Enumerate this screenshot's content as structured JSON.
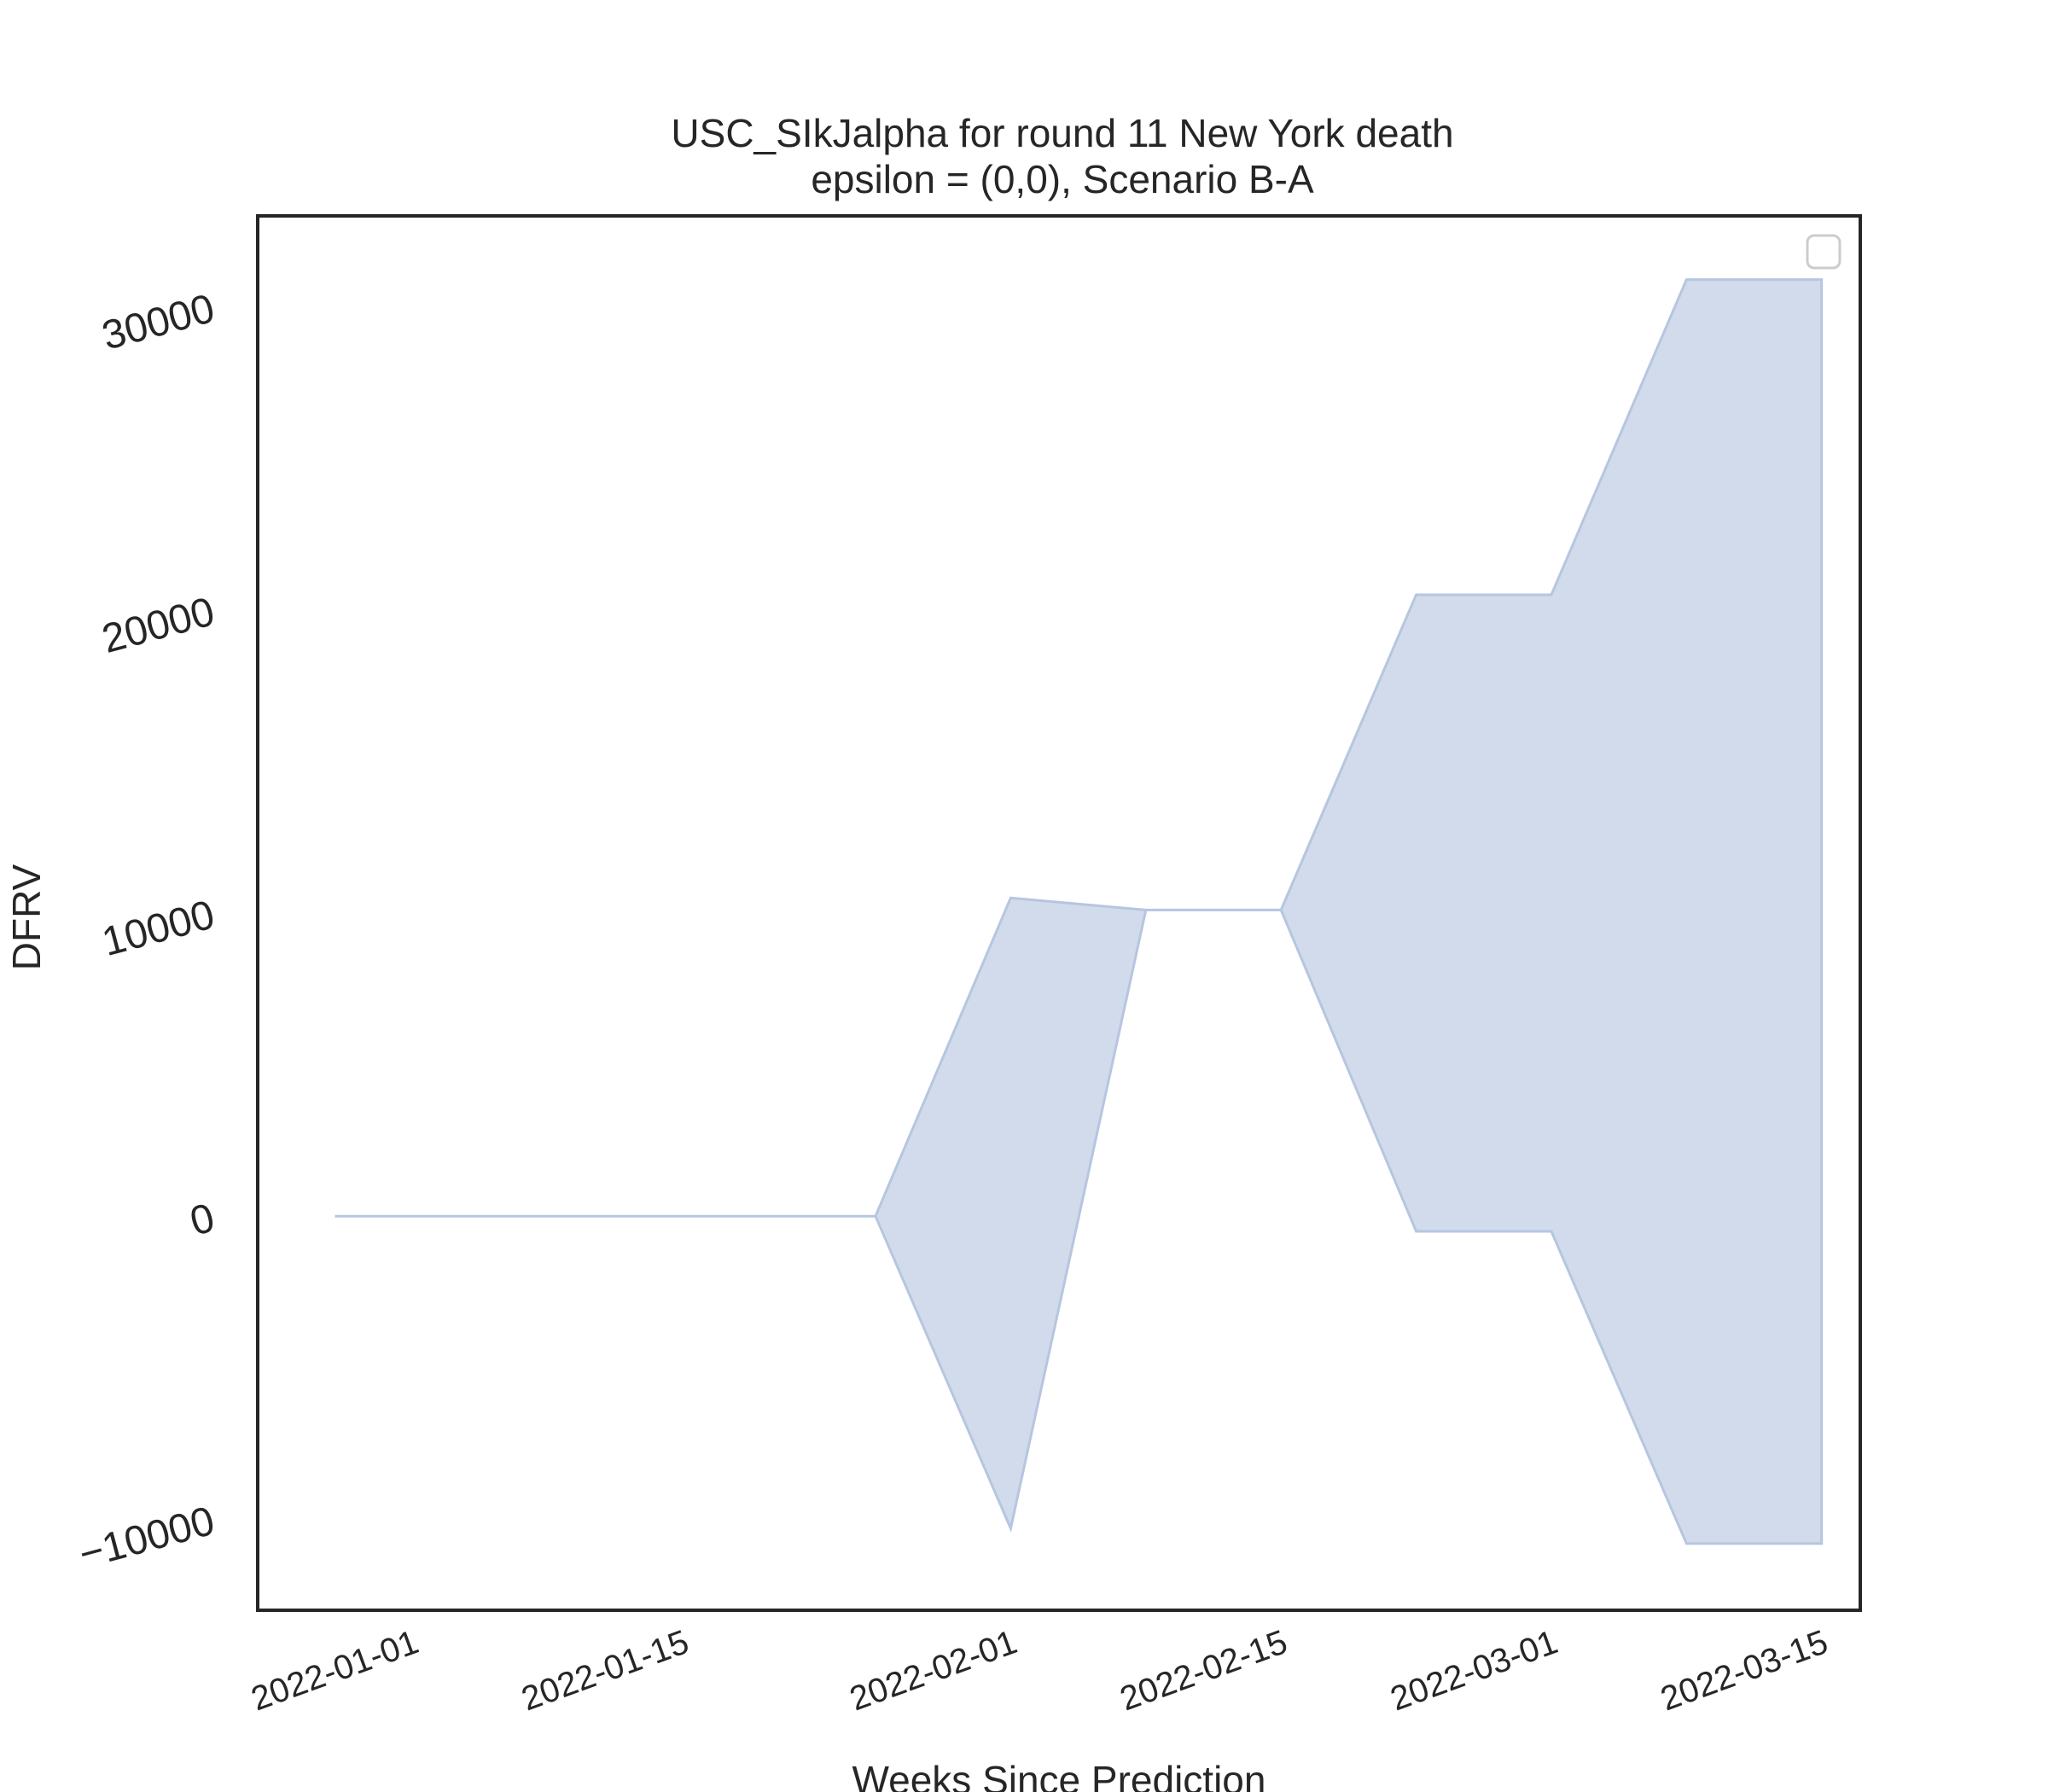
{
  "chart_data": {
    "type": "area",
    "title": "USC_SIkJalpha for round 11 New York death",
    "subtitle": "epsilon = (0,0), Scenario B-A",
    "xlabel": "Weeks Since Prediction",
    "ylabel": "DFRV",
    "x_axis_type": "date",
    "xlim": [
      "2021-12-24",
      "2022-03-17"
    ],
    "ylim": [
      -13000,
      33000
    ],
    "xticks": [
      "2022-01-01",
      "2022-01-15",
      "2022-02-01",
      "2022-02-15",
      "2022-03-01",
      "2022-03-15"
    ],
    "yticks": [
      -10000,
      0,
      10000,
      20000,
      30000
    ],
    "grid": false,
    "legend": "top-right (empty)",
    "fill_color": "#d1dbeb",
    "edge_color": "#b6c6e0",
    "series": [
      {
        "x": [
          "2021-12-28",
          "2022-01-04",
          "2022-01-11",
          "2022-01-18",
          "2022-01-25",
          "2022-02-01",
          "2022-02-08",
          "2022-02-15",
          "2022-02-22",
          "2022-03-01",
          "2022-03-08",
          "2022-03-15"
        ],
        "lower": [
          0,
          0,
          0,
          0,
          0,
          -10300,
          10100,
          10100,
          -500,
          -500,
          -10800,
          -10800
        ],
        "upper": [
          0,
          0,
          0,
          0,
          0,
          10500,
          10100,
          10100,
          20500,
          20500,
          30900,
          30900
        ]
      }
    ]
  }
}
